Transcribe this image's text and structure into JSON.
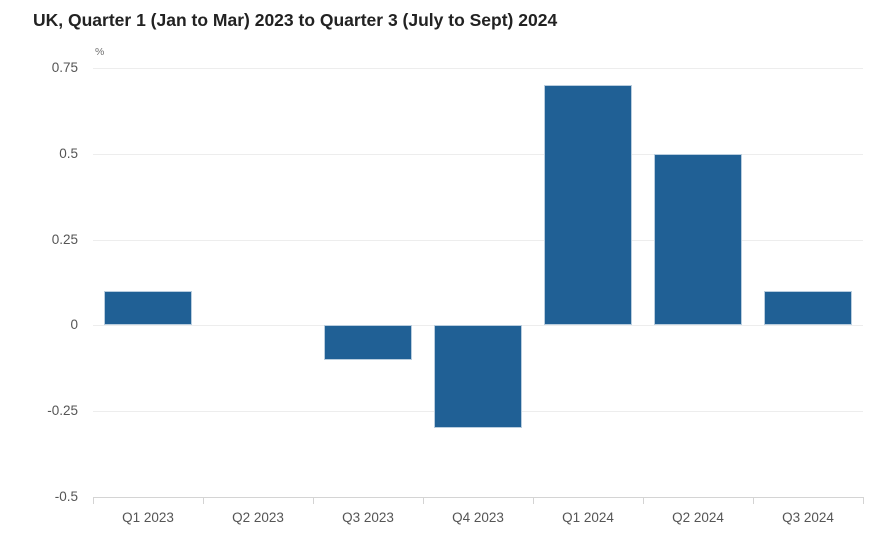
{
  "chart_data": {
    "type": "bar",
    "title": "UK, Quarter 1 (Jan to Mar) 2023 to Quarter 3 (July to Sept) 2024",
    "xlabel": "",
    "ylabel": "%",
    "categories": [
      "Q1 2023",
      "Q2 2023",
      "Q3 2023",
      "Q4 2023",
      "Q1 2024",
      "Q2 2024",
      "Q3 2024"
    ],
    "values": [
      0.1,
      0,
      -0.1,
      -0.3,
      0.7,
      0.5,
      0.1
    ],
    "ylim": [
      -0.5,
      0.75
    ],
    "yticks": [
      0.75,
      0.5,
      0.25,
      0,
      -0.25,
      -0.5
    ],
    "ytick_labels": [
      "0.75",
      "0.5",
      "0.25",
      "0",
      "-0.25",
      "-0.5"
    ],
    "grid": true,
    "legend": false,
    "bar_color": "#206095",
    "bar_border_color": "#b9cdde",
    "grid_color": "#ededed",
    "axis_color": "#d4d4d4"
  }
}
